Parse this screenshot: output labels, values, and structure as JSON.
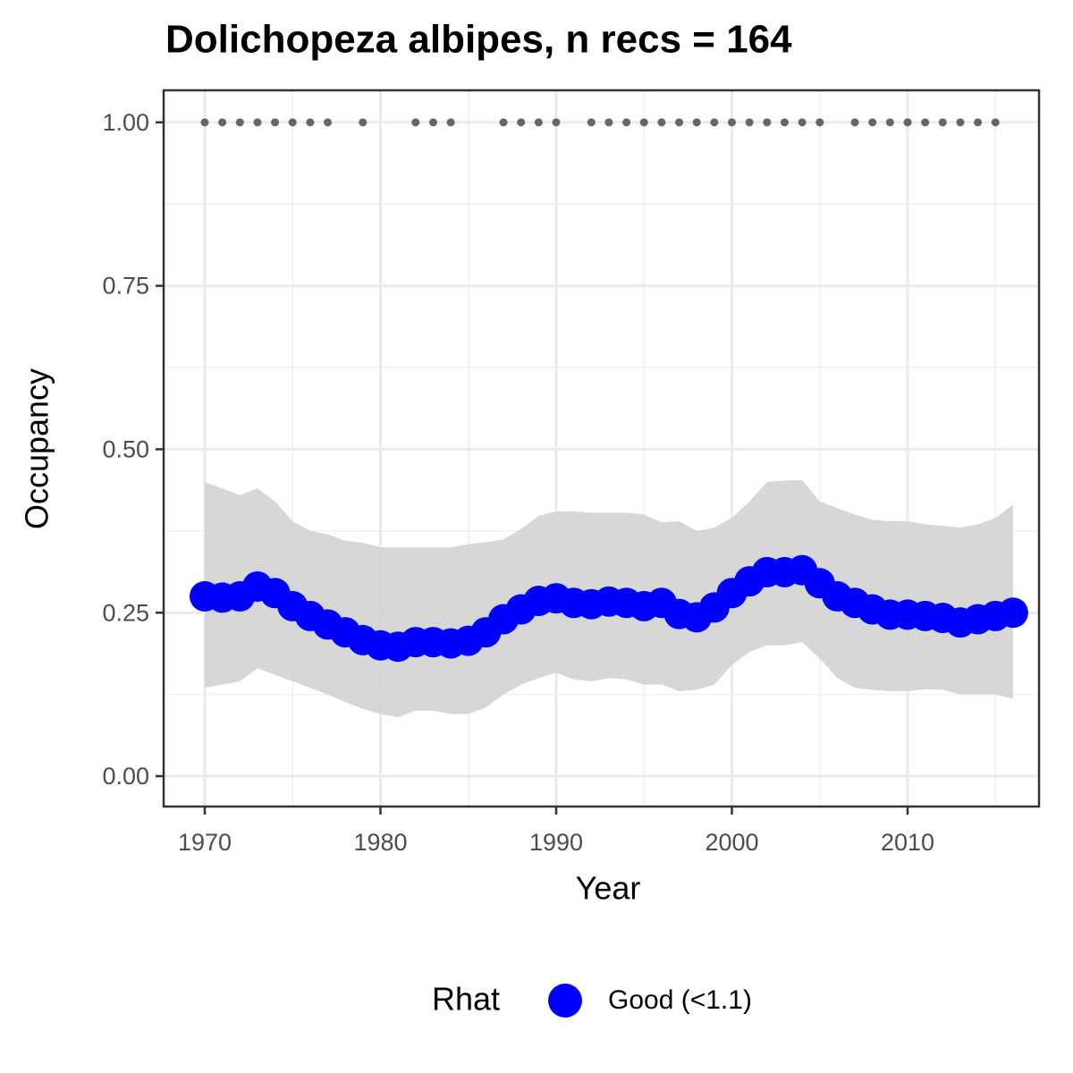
{
  "chart_data": {
    "type": "line",
    "title": "Dolichopeza albipes, n recs = 164",
    "x_label": "Year",
    "y_label": "Occupancy",
    "legend_title": "Rhat",
    "legend_position": "bottom",
    "x": [
      1970,
      1971,
      1972,
      1973,
      1974,
      1975,
      1976,
      1977,
      1978,
      1979,
      1980,
      1981,
      1982,
      1983,
      1984,
      1985,
      1986,
      1987,
      1988,
      1989,
      1990,
      1991,
      1992,
      1993,
      1994,
      1995,
      1996,
      1997,
      1998,
      1999,
      2000,
      2001,
      2002,
      2003,
      2004,
      2005,
      2006,
      2007,
      2008,
      2009,
      2010,
      2011,
      2012,
      2013,
      2014,
      2015,
      2016
    ],
    "series": [
      {
        "name": "Good (<1.1)",
        "color": "#0000ff",
        "values": [
          0.275,
          0.273,
          0.275,
          0.29,
          0.28,
          0.26,
          0.245,
          0.232,
          0.22,
          0.208,
          0.2,
          0.198,
          0.205,
          0.205,
          0.203,
          0.207,
          0.22,
          0.24,
          0.255,
          0.268,
          0.272,
          0.265,
          0.263,
          0.267,
          0.265,
          0.26,
          0.265,
          0.248,
          0.243,
          0.258,
          0.28,
          0.298,
          0.312,
          0.312,
          0.315,
          0.295,
          0.275,
          0.265,
          0.255,
          0.247,
          0.247,
          0.245,
          0.242,
          0.235,
          0.24,
          0.245,
          0.25
        ]
      }
    ],
    "band": {
      "color": "#d3d3d3",
      "upper": [
        0.45,
        0.44,
        0.43,
        0.44,
        0.42,
        0.39,
        0.375,
        0.37,
        0.36,
        0.357,
        0.35,
        0.35,
        0.35,
        0.35,
        0.35,
        0.355,
        0.358,
        0.362,
        0.378,
        0.398,
        0.405,
        0.405,
        0.403,
        0.403,
        0.403,
        0.4,
        0.388,
        0.39,
        0.375,
        0.38,
        0.395,
        0.42,
        0.45,
        0.452,
        0.453,
        0.42,
        0.41,
        0.4,
        0.392,
        0.39,
        0.39,
        0.385,
        0.383,
        0.38,
        0.385,
        0.395,
        0.415
      ],
      "lower": [
        0.135,
        0.14,
        0.145,
        0.165,
        0.155,
        0.145,
        0.135,
        0.125,
        0.113,
        0.103,
        0.095,
        0.09,
        0.1,
        0.1,
        0.095,
        0.095,
        0.105,
        0.125,
        0.14,
        0.15,
        0.158,
        0.148,
        0.145,
        0.15,
        0.148,
        0.14,
        0.14,
        0.13,
        0.132,
        0.14,
        0.17,
        0.19,
        0.2,
        0.2,
        0.205,
        0.18,
        0.15,
        0.135,
        0.132,
        0.13,
        0.13,
        0.133,
        0.132,
        0.125,
        0.125,
        0.125,
        0.118
      ]
    },
    "records": {
      "color": "#666666",
      "x": [
        1970,
        1971,
        1972,
        1973,
        1974,
        1975,
        1976,
        1977,
        1979,
        1982,
        1983,
        1984,
        1987,
        1988,
        1989,
        1990,
        1992,
        1993,
        1994,
        1995,
        1996,
        1997,
        1998,
        1999,
        2000,
        2001,
        2002,
        2003,
        2004,
        2005,
        2007,
        2008,
        2009,
        2010,
        2011,
        2012,
        2013,
        2014,
        2015
      ],
      "values": [
        1,
        1,
        1,
        1,
        1,
        1,
        1,
        1,
        1,
        1,
        1,
        1,
        1,
        1,
        1,
        1,
        1,
        1,
        1,
        1,
        1,
        1,
        1,
        1,
        1,
        1,
        1,
        1,
        1,
        1,
        1,
        1,
        1,
        1,
        1,
        1,
        1,
        1,
        1
      ]
    },
    "xlim": [
      1967.66,
      2017.48
    ],
    "ylim": [
      -0.0465,
      1.049
    ],
    "xticks": [
      1970,
      1980,
      1990,
      2000,
      2010
    ],
    "yticks": [
      {
        "value": 0,
        "label": "0.00"
      },
      {
        "value": 0.25,
        "label": "0.25"
      },
      {
        "value": 0.5,
        "label": "0.50"
      },
      {
        "value": 0.75,
        "label": "0.75"
      },
      {
        "value": 1,
        "label": "1.00"
      }
    ],
    "x_minor_grid": [
      1975,
      1985,
      1995,
      2005,
      2015
    ],
    "y_minor_grid": [
      0.125,
      0.375,
      0.625,
      0.875
    ],
    "grid": true
  }
}
